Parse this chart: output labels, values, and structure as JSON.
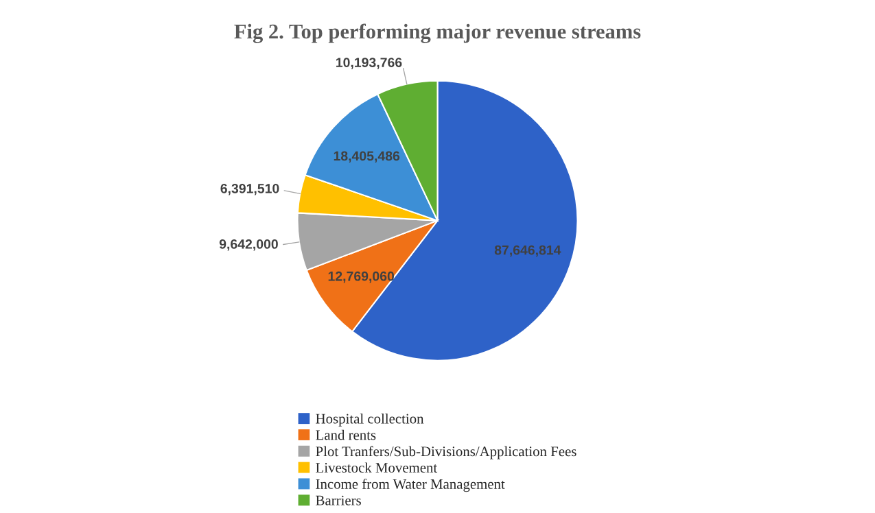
{
  "chart_data": {
    "type": "pie",
    "title": "Fig 2. Top performing major revenue streams",
    "categories": [
      "Hospital collection",
      "Land rents",
      "Plot Tranfers/Sub-Divisions/Application Fees",
      "Livestock Movement",
      "Income from Water Management",
      "Barriers"
    ],
    "values": [
      87646814,
      12769060,
      9642000,
      6391510,
      18405486,
      10193766
    ],
    "colors": [
      "#2e62c8",
      "#f07117",
      "#a5a5a5",
      "#ffc000",
      "#3d8fd6",
      "#5fae32"
    ],
    "value_labels": [
      "87,646,814",
      "12,769,060",
      "9,642,000",
      "6,391,510",
      "18,405,486",
      "10,193,766"
    ],
    "legend": "bottom"
  }
}
